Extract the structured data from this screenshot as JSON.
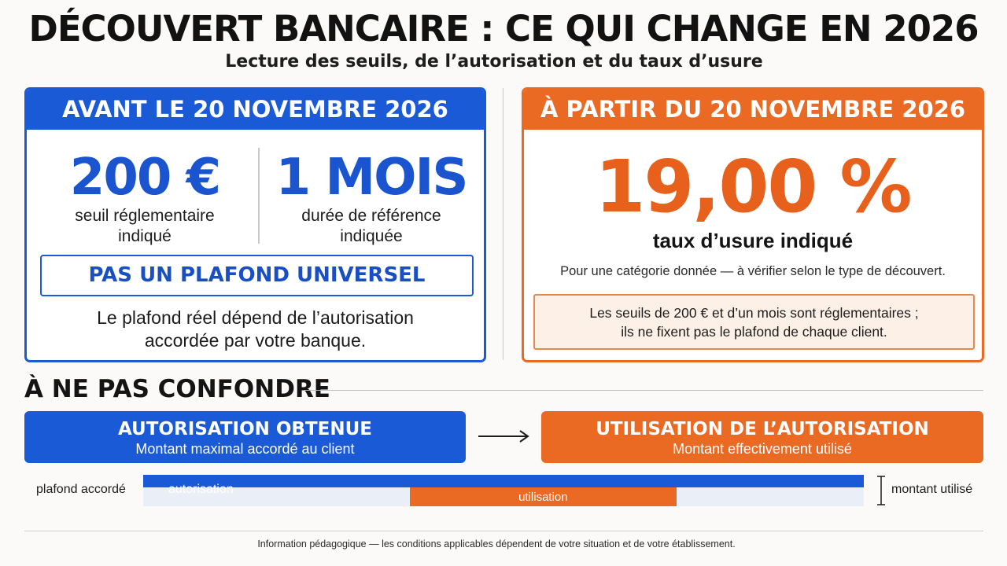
{
  "header": {
    "title": "DÉCOUVERT BANCAIRE : CE QUI CHANGE EN 2026",
    "subtitle": "Lecture des seuils, de l’autorisation et du taux d’usure"
  },
  "before": {
    "heading": "AVANT LE 20 NOVEMBRE 2026",
    "threshold": {
      "value": "200 €",
      "caption_line1": "seuil réglementaire",
      "caption_line2": "indiqué"
    },
    "duration": {
      "value": "1 MOIS",
      "caption_line1": "durée de référence",
      "caption_line2": "indiquée"
    },
    "universal_label": "PAS UN PLAFOND UNIVERSEL",
    "note_line1": "Le plafond réel dépend de l’autorisation",
    "note_line2": "accordée par votre banque."
  },
  "after": {
    "heading": "À PARTIR DU 20 NOVEMBRE 2026",
    "rate": "19,00 %",
    "rate_caption": "taux d’usure indiqué",
    "rate_note": "Pour une catégorie donnée — à vérifier selon le type de découvert.",
    "box_line1": "Les seuils de 200 € et d’un mois sont réglementaires ;",
    "box_line2": "ils ne fixent pas le plafond de chaque client."
  },
  "confusion": {
    "title": "À NE PAS CONFONDRE",
    "authorization": {
      "title": "AUTORISATION OBTENUE",
      "subtitle": "Montant maximal accordé au client"
    },
    "usage": {
      "title": "UTILISATION DE L’AUTORISATION",
      "subtitle": "Montant effectivement utilisé"
    }
  },
  "bar": {
    "left_label": "plafond accordé",
    "authorization_label": "autorisation",
    "usage_label": "utilisation",
    "right_label": "montant utilisé",
    "authorization_fraction": 1.0,
    "usage_start_fraction": 0.37,
    "usage_end_fraction": 0.74
  },
  "footer": "Information pédagogique — les conditions applicables dépendent de votre situation et de votre établissement.",
  "colors": {
    "blue": "#1a5ad6",
    "orange": "#ea6a23",
    "track": "#e9eef7"
  }
}
